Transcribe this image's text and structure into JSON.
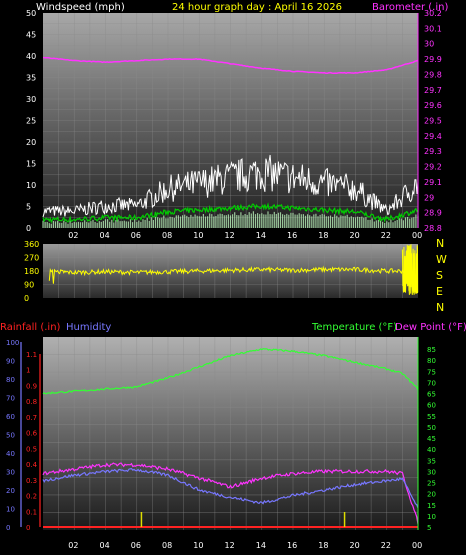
{
  "header": {
    "left": "Windspeed (mph)",
    "center": "24 hour graph day : April 16 2026",
    "right": "Barometer (.in)"
  },
  "panel3_header": {
    "rainfall": "Rainfall (.in)",
    "humidity": "Humidity",
    "temperature": "Temperature (°F)",
    "dewpoint": "Dew Point (°F)"
  },
  "compass": [
    "N",
    "W",
    "S",
    "E",
    "N"
  ],
  "x_ticks": [
    "02",
    "04",
    "06",
    "08",
    "10",
    "12",
    "14",
    "16",
    "18",
    "20",
    "22",
    "00"
  ],
  "colors": {
    "wind_gust": "#ffffff",
    "wind_avg": "#00cc00",
    "barometer": "#ff33ff",
    "direction": "#ffff00",
    "temperature": "#33ff33",
    "dewpoint": "#ff33ff",
    "humidity": "#7777ff",
    "rain": "#ff2222",
    "rain_tick": "#dddd00"
  },
  "chart_data": [
    {
      "type": "line",
      "name": "wind-barometer",
      "x_hours": [
        0,
        2,
        4,
        6,
        8,
        10,
        12,
        14,
        16,
        18,
        20,
        22,
        24
      ],
      "xlim": [
        0,
        24
      ],
      "series": [
        {
          "name": "Windspeed (mph)",
          "axis": "left",
          "ylim": [
            0,
            50
          ],
          "values": [
            3,
            3,
            4,
            4,
            7,
            8,
            9,
            10,
            9,
            8,
            7,
            3,
            8
          ]
        },
        {
          "name": "Barometer (.in)",
          "axis": "right",
          "ylim": [
            28.8,
            30.2
          ],
          "values": [
            29.91,
            29.89,
            29.88,
            29.89,
            29.9,
            29.9,
            29.87,
            29.84,
            29.82,
            29.81,
            29.81,
            29.83,
            29.89
          ]
        }
      ],
      "left_ticks": [
        0,
        5,
        10,
        15,
        20,
        25,
        30,
        35,
        40,
        45,
        50
      ],
      "right_ticks": [
        "28.8",
        "28.9",
        "29",
        "29.1",
        "29.2",
        "29.3",
        "29.4",
        "29.5",
        "29.6",
        "29.7",
        "29.8",
        "29.9",
        "30",
        "30.1",
        "30.2"
      ],
      "grid": true
    },
    {
      "type": "line",
      "name": "wind-direction",
      "ylim": [
        0,
        360
      ],
      "left_ticks": [
        0,
        90,
        180,
        270,
        360
      ],
      "x_hours": [
        0,
        2,
        4,
        6,
        8,
        10,
        12,
        14,
        16,
        18,
        20,
        22,
        23
      ],
      "values": [
        180,
        170,
        175,
        170,
        175,
        180,
        185,
        190,
        185,
        190,
        190,
        180,
        180
      ],
      "grid": true
    },
    {
      "type": "line",
      "name": "temperature-humidity",
      "xlim": [
        0,
        24
      ],
      "x_hours": [
        0,
        2,
        4,
        6,
        8,
        10,
        12,
        14,
        16,
        18,
        20,
        22,
        23,
        24
      ],
      "series": [
        {
          "name": "Temperature (°F)",
          "axis": "temp",
          "values": [
            65,
            66,
            67,
            68,
            72,
            77,
            82,
            85,
            84,
            82,
            79,
            76,
            74,
            67
          ]
        },
        {
          "name": "Dew Point (°F)",
          "axis": "temp",
          "values": [
            29,
            31,
            33,
            33,
            31,
            27,
            23,
            27,
            29,
            30,
            30,
            30,
            29,
            7
          ]
        },
        {
          "name": "Humidity",
          "axis": "humidity",
          "values": [
            25,
            28,
            30,
            31,
            28,
            20,
            16,
            13,
            17,
            20,
            23,
            25,
            26,
            10
          ]
        },
        {
          "name": "Rainfall (.in)",
          "axis": "rain",
          "values": [
            0,
            0,
            0,
            0,
            0,
            0,
            0,
            0,
            0,
            0,
            0,
            0,
            0,
            0
          ]
        }
      ],
      "humidity_ticks": [
        0,
        10,
        20,
        30,
        40,
        50,
        60,
        70,
        80,
        90,
        100
      ],
      "rain_ticks": [
        "0",
        "0.1",
        "0.2",
        "0.3",
        "0.4",
        "0.5",
        "0.6",
        "0.7",
        "0.8",
        "0.9",
        "1",
        "1.1"
      ],
      "temp_ticks": [
        5,
        10,
        15,
        20,
        25,
        30,
        35,
        40,
        45,
        50,
        55,
        60,
        65,
        70,
        75,
        80,
        85
      ],
      "grid": true
    }
  ]
}
